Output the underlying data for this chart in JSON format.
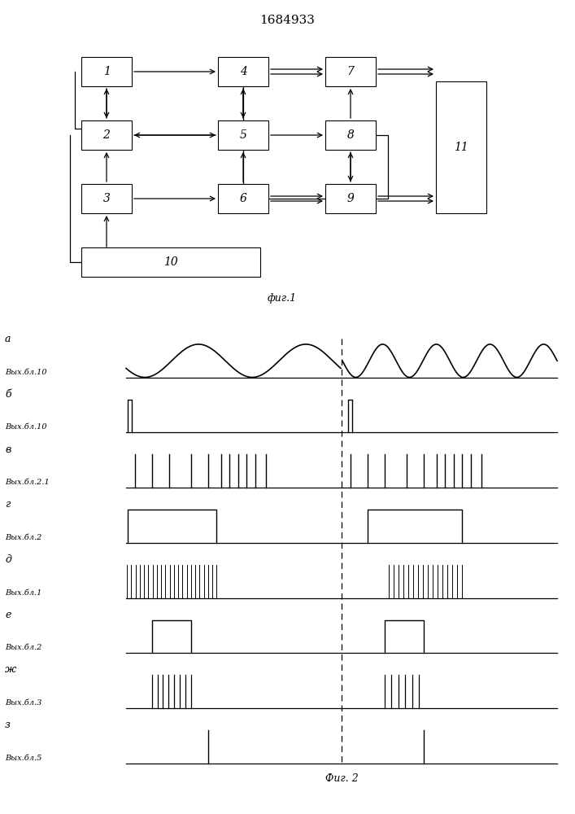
{
  "title": "1684933",
  "fig1_label": "фиг.1",
  "fig2_label": "Фиг. 2",
  "bg_color": "#ffffff",
  "line_color": "#000000",
  "waveform_rows": [
    {
      "label_top": "а",
      "label_bot": "Вых.бл.10",
      "type": "sine"
    },
    {
      "label_top": "б",
      "label_bot": "Вых.бл.10",
      "type": "pulse_single"
    },
    {
      "label_top": "в",
      "label_bot": "Вых.бл.2.1",
      "type": "pulse_ticks"
    },
    {
      "label_top": "г",
      "label_bot": "Вых.бл.2",
      "type": "pulse_wide"
    },
    {
      "label_top": "д",
      "label_bot": "Вых.бл.1",
      "type": "pulse_dense"
    },
    {
      "label_top": "е",
      "label_bot": "Вых.бл.2",
      "type": "pulse_medium"
    },
    {
      "label_top": "ж",
      "label_bot": "Вых.бл.3",
      "type": "pulse_dense_short"
    },
    {
      "label_top": "з",
      "label_bot": "Вых.бл.5",
      "type": "pulse_single_tick"
    }
  ]
}
